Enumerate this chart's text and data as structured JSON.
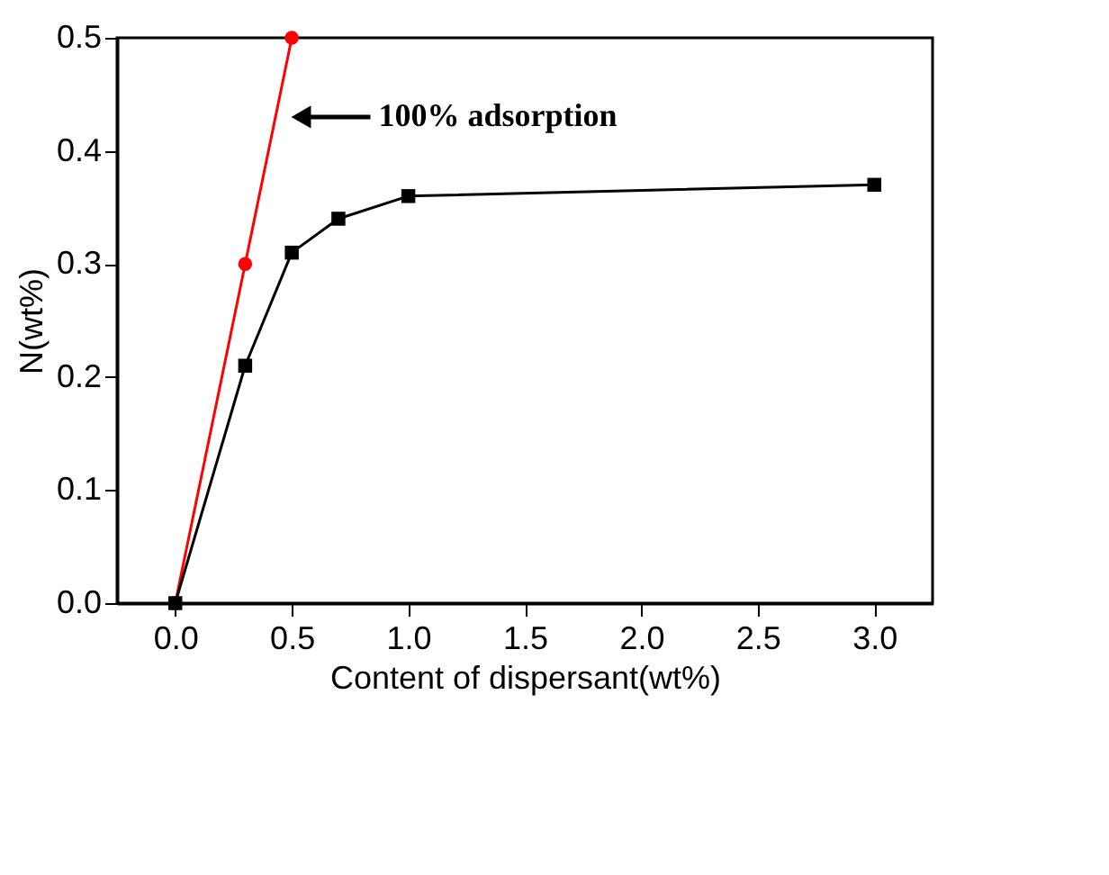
{
  "chart_data": {
    "type": "line",
    "xlabel": "Content of dispersant(wt%)",
    "ylabel": "N(wt%)",
    "series": [
      {
        "color": "#ff0000",
        "x": [
          0.0,
          0.3,
          0.5
        ],
        "values": [
          0.0,
          0.3,
          0.5
        ],
        "marker": "circle"
      },
      {
        "color": "#000000",
        "x": [
          0.0,
          0.3,
          0.5,
          0.7,
          1.0,
          3.0
        ],
        "values": [
          0.0,
          0.21,
          0.31,
          0.34,
          0.36,
          0.37
        ],
        "marker": "square"
      }
    ],
    "xlim": [
      -0.25,
      3.25
    ],
    "xticks": [
      {
        "value": 0.0,
        "label": "0.0"
      },
      0.5,
      {
        "value": 1.0,
        "label": "1.0"
      },
      1.5,
      {
        "value": 2.0,
        "label": "2.0"
      },
      2.5,
      {
        "value": 3.0,
        "label": "3.0"
      }
    ],
    "ylim": [
      0,
      0.5
    ],
    "yticks": [
      {
        "value": 0,
        "label": "0.0"
      },
      0.1,
      0.2,
      0.3,
      0.4,
      0.5
    ],
    "annotations": [
      {
        "text": "100% adsorption",
        "x": 0.54,
        "y": 0.43
      }
    ],
    "grid": false,
    "legend": false
  }
}
